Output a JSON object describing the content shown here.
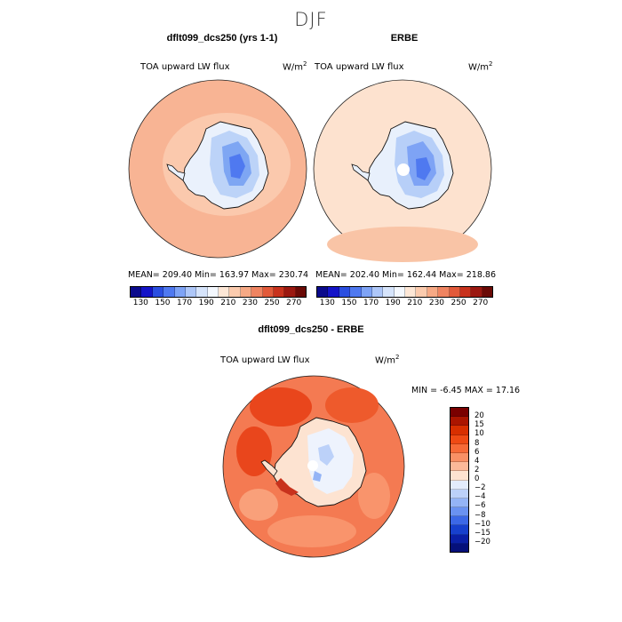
{
  "figure_title": "DJF",
  "chart_data": [
    {
      "type": "polar-contour-map",
      "title": "dflt099_dcs250 (yrs 1-1)",
      "field_label": "TOA upward LW flux",
      "units": "W/m",
      "units_exp": "2",
      "stats": {
        "mean": 209.4,
        "min": 163.97,
        "max": 230.74
      },
      "stats_text": "MEAN= 209.40   Min= 163.97   Max= 230.74",
      "colorbar_levels": [
        130,
        150,
        170,
        190,
        210,
        230,
        250,
        270
      ]
    },
    {
      "type": "polar-contour-map",
      "title": "ERBE",
      "field_label": "TOA upward LW flux",
      "units": "W/m",
      "units_exp": "2",
      "stats": {
        "mean": 202.4,
        "min": 162.44,
        "max": 218.86
      },
      "stats_text": "MEAN= 202.40   Min= 162.44   Max= 218.86",
      "colorbar_levels": [
        130,
        150,
        170,
        190,
        210,
        230,
        250,
        270
      ]
    },
    {
      "type": "polar-contour-map",
      "title": "dflt099_dcs250 - ERBE",
      "field_label": "TOA upward LW flux",
      "units": "W/m",
      "units_exp": "2",
      "stats": {
        "min": -6.45,
        "max": 17.16
      },
      "stats_text": "MIN =   -6.45 MAX =   17.16",
      "colorbar_levels": [
        20,
        15,
        10,
        8,
        6,
        4,
        2,
        0,
        -2,
        -4,
        -6,
        -8,
        -10,
        -15,
        -20
      ],
      "colorbar_level_labels": [
        "20",
        "15",
        "10",
        "8",
        "6",
        "4",
        "2",
        "0",
        "−2",
        "−4",
        "−6",
        "−8",
        "−10",
        "−15",
        "−20"
      ]
    }
  ],
  "colors": {
    "abs_scale": [
      "#0a0a8c",
      "#1414c8",
      "#2a4ee0",
      "#4f79f0",
      "#7ea3f5",
      "#aec7f8",
      "#d6e4fb",
      "#f4f8fe",
      "#fde7d6",
      "#fbcbae",
      "#f6a985",
      "#ef8461",
      "#e25a3a",
      "#c8321d",
      "#9b1810",
      "#6a0a06"
    ],
    "diff_scale": [
      "#7a0000",
      "#ab1500",
      "#d82f00",
      "#ef4a14",
      "#f76a37",
      "#f99065",
      "#fbb999",
      "#fde3d1",
      "#e3ecfc",
      "#bcd1f9",
      "#94b4f6",
      "#6a92f1",
      "#3c68e6",
      "#1740cd",
      "#0a1fa6",
      "#05107a"
    ],
    "map_uniform_model": "#f8b79b",
    "map_uniform_erbe": "#fde0cb",
    "map_diff_bg": "#f5744a"
  }
}
